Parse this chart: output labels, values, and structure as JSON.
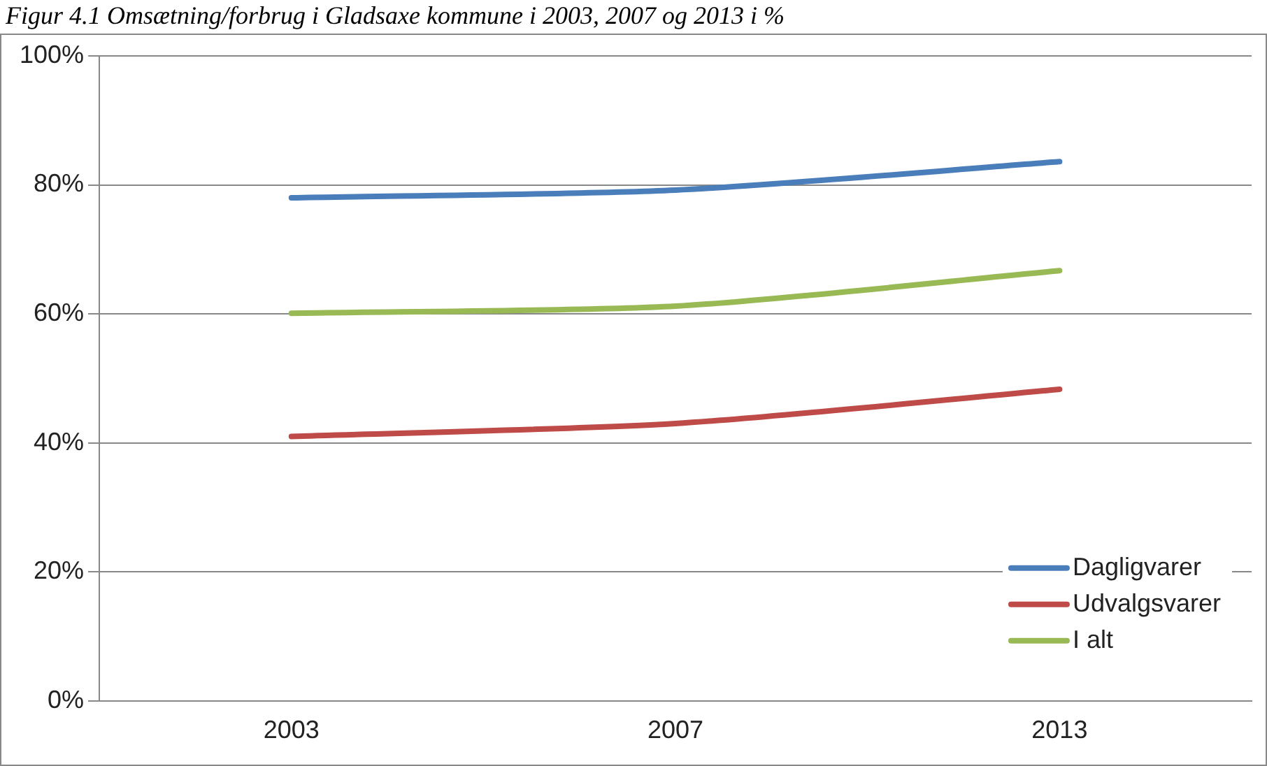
{
  "chart_data": {
    "type": "line",
    "title": "Figur 4.1 Omsætning/forbrug i Gladsaxe kommune i 2003, 2007 og 2013 i %",
    "categories": [
      "2003",
      "2007",
      "2013"
    ],
    "series": [
      {
        "name": "Dagligvarer",
        "color": "#4a7ebb",
        "values": [
          78,
          79.2,
          83.6
        ]
      },
      {
        "name": "Udvalgsvarer",
        "color": "#be4b48",
        "values": [
          41,
          43,
          48.3
        ]
      },
      {
        "name": "I alt",
        "color": "#98b954",
        "values": [
          60.1,
          61.2,
          66.7
        ]
      }
    ],
    "ylim": [
      0,
      100
    ],
    "yticks": [
      {
        "value": 0,
        "label": "0%"
      },
      {
        "value": 20,
        "label": "20%"
      },
      {
        "value": 40,
        "label": "40%"
      },
      {
        "value": 60,
        "label": "60%"
      },
      {
        "value": 80,
        "label": "80%"
      },
      {
        "value": 100,
        "label": "100%"
      }
    ],
    "grid": "y",
    "legend": "bottom right",
    "marker": "none",
    "line_style": "solid"
  }
}
